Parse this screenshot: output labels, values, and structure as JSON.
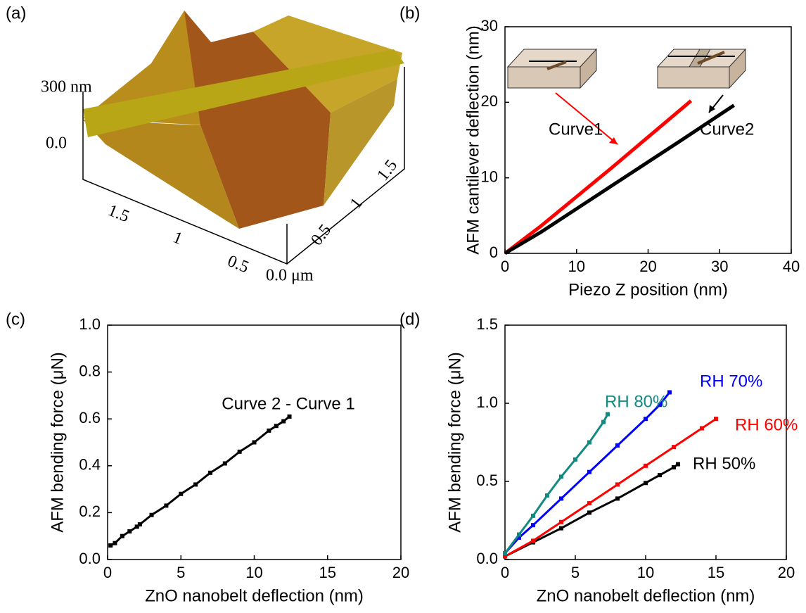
{
  "chart_data": [
    {
      "type": "surface",
      "panel_label": "(a)",
      "zticks": [
        {
          "value": 300,
          "label": "300 nm"
        },
        {
          "value": 0,
          "label": "0.0"
        }
      ],
      "xticks": [
        1.5,
        1.0,
        0.5
      ],
      "yticks": [
        0.5,
        1.0,
        1.5
      ],
      "origin_label": "0.0 μm"
    },
    {
      "type": "line",
      "panel_label": "(b)",
      "xlabel": "Piezo Z position (nm)",
      "ylabel": "AFM cantilever deflection (nm)",
      "xlim": [
        0,
        40
      ],
      "ylim": [
        0,
        30
      ],
      "xticks": [
        0,
        10,
        20,
        30,
        40
      ],
      "yticks": [
        0,
        10,
        20,
        30
      ],
      "series": [
        {
          "name": "Curve1",
          "color": "#ff0000",
          "x": [
            0,
            5,
            10,
            15,
            20,
            26
          ],
          "values": [
            0,
            3.6,
            7.5,
            11.4,
            15.4,
            20.2
          ]
        },
        {
          "name": "Curve2",
          "color": "#000000",
          "x": [
            0,
            5,
            10,
            15,
            20,
            25,
            32
          ],
          "values": [
            0,
            2.8,
            5.9,
            9.0,
            12.1,
            15.2,
            19.6
          ]
        }
      ]
    },
    {
      "type": "scatter",
      "panel_label": "(c)",
      "xlabel": "ZnO nanobelt deflection (nm)",
      "ylabel": "AFM bending force (μN)",
      "annotation": "Curve 2 - Curve 1",
      "xlim": [
        0,
        20
      ],
      "ylim": [
        0,
        1.0
      ],
      "xticks": [
        0,
        5,
        10,
        15,
        20
      ],
      "yticks": [
        {
          "value": 0,
          "label": "0.0"
        },
        0.2,
        0.4,
        0.6,
        0.8,
        {
          "value": 1.0,
          "label": "1.0"
        }
      ],
      "series": [
        {
          "name": null,
          "color": "#000000",
          "x": [
            0.2,
            0.5,
            1,
            1.5,
            2,
            2.2,
            3,
            4,
            5,
            6,
            7,
            8,
            9,
            10,
            11,
            11.5,
            12,
            12.4
          ],
          "values": [
            0.06,
            0.07,
            0.1,
            0.12,
            0.14,
            0.15,
            0.19,
            0.23,
            0.28,
            0.32,
            0.37,
            0.41,
            0.46,
            0.5,
            0.55,
            0.57,
            0.59,
            0.61
          ]
        }
      ]
    },
    {
      "type": "scatter",
      "panel_label": "(d)",
      "xlabel": "ZnO nanobelt deflection (nm)",
      "ylabel": "AFM bending force (μN)",
      "xlim": [
        0,
        20
      ],
      "ylim": [
        0,
        1.5
      ],
      "xticks": [
        0,
        5,
        10,
        15,
        20
      ],
      "yticks": [
        {
          "value": 0,
          "label": "0.0"
        },
        0.5,
        {
          "value": 1.0,
          "label": "1.0"
        },
        1.5
      ],
      "series": [
        {
          "name": "RH 50%",
          "color": "#000000",
          "x": [
            0,
            2,
            4,
            6,
            8,
            10,
            11,
            12,
            12.3
          ],
          "values": [
            0.02,
            0.11,
            0.2,
            0.3,
            0.39,
            0.49,
            0.54,
            0.59,
            0.61
          ]
        },
        {
          "name": "RH 60%",
          "color": "#ff0000",
          "x": [
            0,
            2,
            4,
            6,
            8,
            10,
            12,
            14,
            15
          ],
          "values": [
            0.02,
            0.12,
            0.24,
            0.36,
            0.48,
            0.6,
            0.72,
            0.84,
            0.9
          ]
        },
        {
          "name": "RH 70%",
          "color": "#0000ff",
          "x": [
            0,
            1,
            2,
            4,
            6,
            8,
            10,
            11,
            11.7
          ],
          "values": [
            0.04,
            0.14,
            0.22,
            0.39,
            0.56,
            0.73,
            0.9,
            0.99,
            1.07
          ]
        },
        {
          "name": "RH 80%",
          "color": "#138a80",
          "x": [
            0,
            1,
            2,
            3,
            4,
            5,
            6,
            7,
            7.3
          ],
          "values": [
            0.04,
            0.16,
            0.28,
            0.41,
            0.53,
            0.64,
            0.75,
            0.88,
            0.93
          ]
        }
      ]
    }
  ]
}
